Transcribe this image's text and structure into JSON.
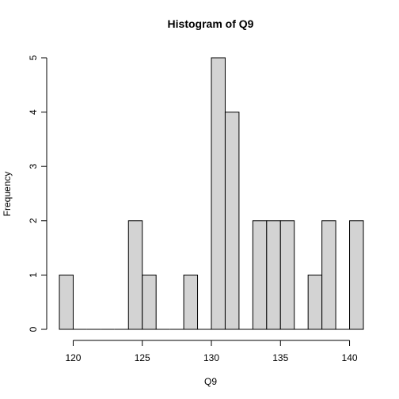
{
  "chart_data": {
    "type": "bar",
    "title": "Histogram of Q9",
    "xlabel": "Q9",
    "ylabel": "Frequency",
    "bin_width": 1,
    "bins": [
      {
        "start": 119,
        "end": 120,
        "count": 1
      },
      {
        "start": 120,
        "end": 121,
        "count": 0
      },
      {
        "start": 121,
        "end": 122,
        "count": 0
      },
      {
        "start": 122,
        "end": 123,
        "count": 0
      },
      {
        "start": 123,
        "end": 124,
        "count": 0
      },
      {
        "start": 124,
        "end": 125,
        "count": 2
      },
      {
        "start": 125,
        "end": 126,
        "count": 1
      },
      {
        "start": 126,
        "end": 127,
        "count": 0
      },
      {
        "start": 127,
        "end": 128,
        "count": 0
      },
      {
        "start": 128,
        "end": 129,
        "count": 1
      },
      {
        "start": 129,
        "end": 130,
        "count": 0
      },
      {
        "start": 130,
        "end": 131,
        "count": 5
      },
      {
        "start": 131,
        "end": 132,
        "count": 4
      },
      {
        "start": 132,
        "end": 133,
        "count": 0
      },
      {
        "start": 133,
        "end": 134,
        "count": 2
      },
      {
        "start": 134,
        "end": 135,
        "count": 2
      },
      {
        "start": 135,
        "end": 136,
        "count": 2
      },
      {
        "start": 136,
        "end": 137,
        "count": 0
      },
      {
        "start": 137,
        "end": 138,
        "count": 1
      },
      {
        "start": 138,
        "end": 139,
        "count": 2
      },
      {
        "start": 139,
        "end": 140,
        "count": 0
      },
      {
        "start": 140,
        "end": 141,
        "count": 2
      }
    ],
    "xlim": [
      119,
      141
    ],
    "ylim": [
      0,
      5
    ],
    "x_ticks": [
      "120",
      "125",
      "130",
      "135",
      "140"
    ],
    "y_ticks": [
      "0",
      "1",
      "2",
      "3",
      "4",
      "5"
    ],
    "grid": false,
    "bar_color": "#d3d3d3"
  }
}
